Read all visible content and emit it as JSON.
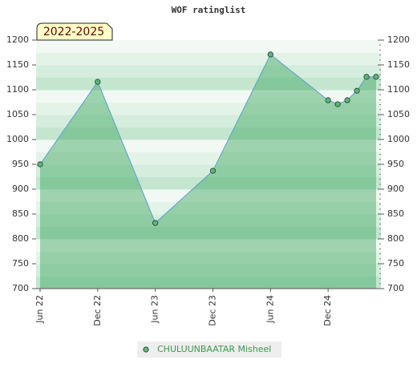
{
  "chart_data": {
    "type": "line",
    "title": "WOF ratinglist",
    "period_label": "2022-2025",
    "x": [
      "2022-06",
      "2022-12",
      "2023-06",
      "2023-12",
      "2024-06",
      "2024-12",
      "2025-01",
      "2025-02",
      "2025-03",
      "2025-04",
      "2025-05"
    ],
    "xticks": [
      {
        "value": "2022-06",
        "label": "Jun 22"
      },
      {
        "value": "2022-12",
        "label": "Dec 22"
      },
      {
        "value": "2023-06",
        "label": "Jun 23"
      },
      {
        "value": "2023-12",
        "label": "Dec 23"
      },
      {
        "value": "2024-06",
        "label": "Jun 24"
      },
      {
        "value": "2024-12",
        "label": "Dec 24"
      }
    ],
    "series": [
      {
        "name": "CHULUUNBAATAR Misheel",
        "color": "#5cb870",
        "line_color": "#5b9fd0",
        "values": [
          950,
          1116,
          832,
          937,
          1171,
          1079,
          1071,
          1079,
          1098,
          1126,
          1126
        ]
      }
    ],
    "ylim": [
      700,
      1200
    ],
    "yticks": [
      700,
      750,
      800,
      850,
      900,
      950,
      1000,
      1050,
      1100,
      1150,
      1200
    ],
    "y2lim": [
      700,
      1200
    ],
    "y2ticks": [
      700,
      750,
      800,
      850,
      900,
      950,
      1000,
      1050,
      1100,
      1150,
      1200
    ]
  }
}
